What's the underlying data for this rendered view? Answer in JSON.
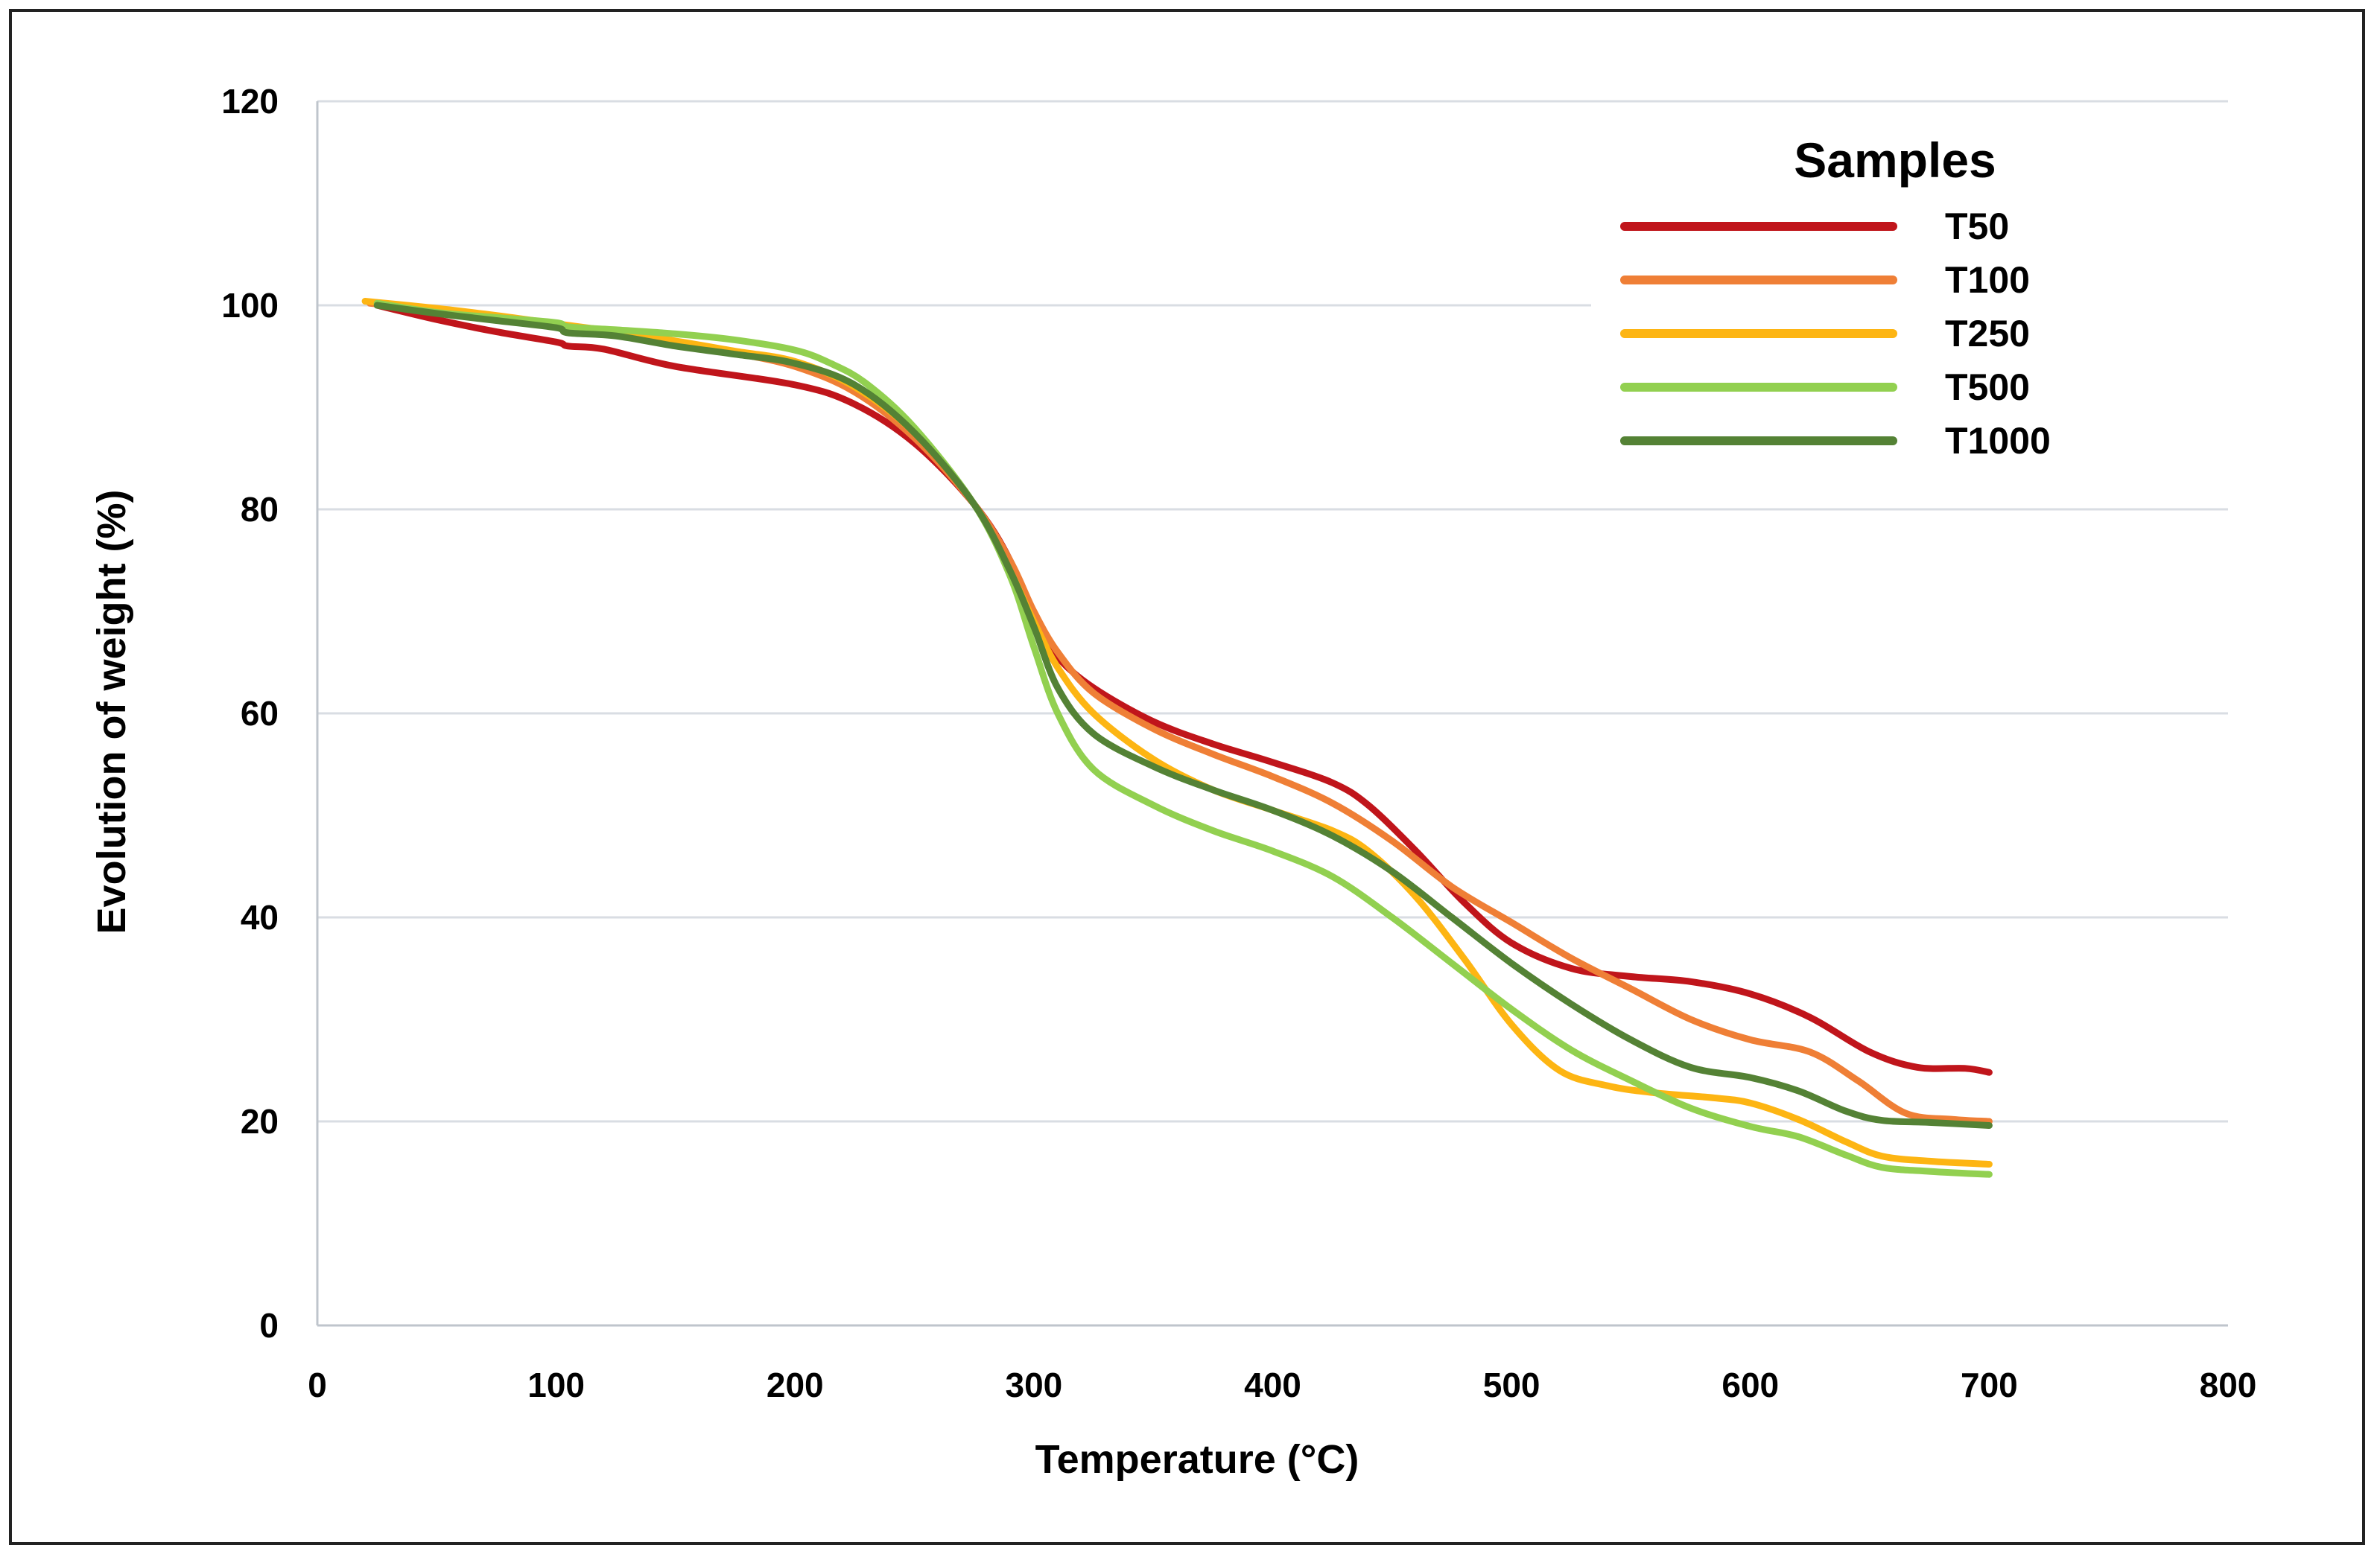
{
  "chart_data": {
    "type": "line",
    "title": "",
    "xlabel": "Temperature (°C)",
    "ylabel": "Evolution of weight (%)",
    "xlim": [
      0,
      800
    ],
    "ylim": [
      0,
      120
    ],
    "x_ticks": [
      0,
      100,
      200,
      300,
      400,
      500,
      600,
      700,
      800
    ],
    "y_ticks": [
      0,
      20,
      40,
      60,
      80,
      100,
      120
    ],
    "grid": "horizontal",
    "legend": {
      "title": "Samples",
      "position": "top-right"
    },
    "series": [
      {
        "name": "T50",
        "color": "#c0151b",
        "points": [
          [
            25,
            100
          ],
          [
            50,
            98.6
          ],
          [
            75,
            97.4
          ],
          [
            100,
            96.4
          ],
          [
            105,
            96
          ],
          [
            120,
            95.7
          ],
          [
            150,
            94
          ],
          [
            200,
            92.2
          ],
          [
            225,
            90.3
          ],
          [
            250,
            86.5
          ],
          [
            275,
            80.5
          ],
          [
            290,
            75
          ],
          [
            300,
            69
          ],
          [
            310,
            65.5
          ],
          [
            325,
            62.5
          ],
          [
            350,
            59.2
          ],
          [
            375,
            57
          ],
          [
            400,
            55.2
          ],
          [
            425,
            53.2
          ],
          [
            440,
            51
          ],
          [
            460,
            46.5
          ],
          [
            480,
            41.5
          ],
          [
            500,
            37.5
          ],
          [
            525,
            35
          ],
          [
            550,
            34.2
          ],
          [
            575,
            33.7
          ],
          [
            600,
            32.5
          ],
          [
            625,
            30.2
          ],
          [
            650,
            26.8
          ],
          [
            670,
            25.3
          ],
          [
            690,
            25.2
          ],
          [
            700,
            24.8
          ]
        ]
      },
      {
        "name": "T100",
        "color": "#ef7f36",
        "points": [
          [
            22,
            100.2
          ],
          [
            50,
            99.5
          ],
          [
            75,
            98.8
          ],
          [
            100,
            98
          ],
          [
            125,
            97.2
          ],
          [
            150,
            96.3
          ],
          [
            175,
            95.3
          ],
          [
            200,
            94
          ],
          [
            225,
            91.5
          ],
          [
            250,
            87
          ],
          [
            275,
            80.5
          ],
          [
            290,
            75
          ],
          [
            300,
            70
          ],
          [
            310,
            66
          ],
          [
            325,
            62
          ],
          [
            350,
            58.5
          ],
          [
            375,
            56
          ],
          [
            400,
            53.8
          ],
          [
            425,
            51.2
          ],
          [
            450,
            47.5
          ],
          [
            475,
            43
          ],
          [
            500,
            39.5
          ],
          [
            525,
            36
          ],
          [
            550,
            33
          ],
          [
            575,
            30
          ],
          [
            600,
            28
          ],
          [
            625,
            26.8
          ],
          [
            645,
            24
          ],
          [
            665,
            20.8
          ],
          [
            685,
            20.2
          ],
          [
            700,
            20
          ]
        ]
      },
      {
        "name": "T250",
        "color": "#fdb513",
        "points": [
          [
            20,
            100.4
          ],
          [
            50,
            99.7
          ],
          [
            75,
            99
          ],
          [
            100,
            98.2
          ],
          [
            125,
            97.4
          ],
          [
            150,
            96.5
          ],
          [
            175,
            95.5
          ],
          [
            200,
            94.5
          ],
          [
            225,
            92
          ],
          [
            250,
            87.5
          ],
          [
            275,
            80.5
          ],
          [
            290,
            74
          ],
          [
            300,
            69
          ],
          [
            310,
            64.5
          ],
          [
            325,
            60
          ],
          [
            350,
            55.5
          ],
          [
            375,
            52.5
          ],
          [
            400,
            50.5
          ],
          [
            425,
            48.5
          ],
          [
            440,
            46.5
          ],
          [
            460,
            42
          ],
          [
            480,
            36
          ],
          [
            500,
            29.5
          ],
          [
            520,
            25
          ],
          [
            540,
            23.5
          ],
          [
            560,
            22.8
          ],
          [
            585,
            22.3
          ],
          [
            600,
            21.8
          ],
          [
            620,
            20.2
          ],
          [
            640,
            18
          ],
          [
            655,
            16.6
          ],
          [
            675,
            16.1
          ],
          [
            700,
            15.8
          ]
        ]
      },
      {
        "name": "T500",
        "color": "#92d050",
        "points": [
          [
            25,
            100.2
          ],
          [
            50,
            99.3
          ],
          [
            75,
            98.8
          ],
          [
            100,
            98.3
          ],
          [
            105,
            97.9
          ],
          [
            125,
            97.6
          ],
          [
            150,
            97.2
          ],
          [
            175,
            96.6
          ],
          [
            200,
            95.6
          ],
          [
            215,
            94.3
          ],
          [
            230,
            92.3
          ],
          [
            250,
            88
          ],
          [
            275,
            80.5
          ],
          [
            290,
            73.5
          ],
          [
            300,
            66.5
          ],
          [
            310,
            60
          ],
          [
            325,
            54.5
          ],
          [
            350,
            51
          ],
          [
            375,
            48.5
          ],
          [
            400,
            46.5
          ],
          [
            425,
            44
          ],
          [
            450,
            40
          ],
          [
            475,
            35.5
          ],
          [
            500,
            31
          ],
          [
            525,
            27
          ],
          [
            550,
            24
          ],
          [
            575,
            21.3
          ],
          [
            600,
            19.5
          ],
          [
            620,
            18.5
          ],
          [
            640,
            16.7
          ],
          [
            655,
            15.5
          ],
          [
            675,
            15.1
          ],
          [
            700,
            14.8
          ]
        ]
      },
      {
        "name": "T1000",
        "color": "#548235",
        "points": [
          [
            25,
            100
          ],
          [
            50,
            99.2
          ],
          [
            75,
            98.5
          ],
          [
            100,
            97.8
          ],
          [
            105,
            97.3
          ],
          [
            125,
            97
          ],
          [
            150,
            96
          ],
          [
            175,
            95.2
          ],
          [
            200,
            94.3
          ],
          [
            225,
            92.2
          ],
          [
            250,
            87.5
          ],
          [
            275,
            80.5
          ],
          [
            290,
            74
          ],
          [
            300,
            68.5
          ],
          [
            310,
            62.5
          ],
          [
            325,
            58
          ],
          [
            350,
            54.8
          ],
          [
            375,
            52.5
          ],
          [
            400,
            50.5
          ],
          [
            425,
            48
          ],
          [
            450,
            44.5
          ],
          [
            475,
            40
          ],
          [
            500,
            35.5
          ],
          [
            525,
            31.5
          ],
          [
            550,
            28
          ],
          [
            575,
            25.3
          ],
          [
            600,
            24.3
          ],
          [
            620,
            23
          ],
          [
            640,
            21
          ],
          [
            655,
            20.1
          ],
          [
            675,
            19.9
          ],
          [
            700,
            19.6
          ]
        ]
      }
    ]
  }
}
